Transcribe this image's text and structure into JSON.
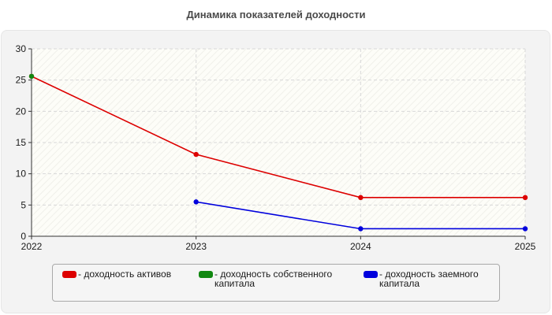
{
  "chart_data": {
    "type": "line",
    "title": "Динамика показателей доходности",
    "x": [
      "2022",
      "2023",
      "2024",
      "2025"
    ],
    "ylim": [
      0,
      30
    ],
    "yticks": [
      "0",
      "5",
      "10",
      "15",
      "20",
      "25",
      "30"
    ],
    "grid": true,
    "legend_position": "bottom",
    "series": [
      {
        "name": "- доходность активов",
        "color": "#dd0000",
        "values": [
          25.6,
          13.1,
          6.2,
          6.2
        ]
      },
      {
        "name": "- доходность собственного капитала",
        "color": "#118811",
        "values": [
          25.6,
          null,
          null,
          null
        ]
      },
      {
        "name": "- доходность заемного капитала",
        "color": "#0000dd",
        "values": [
          null,
          5.5,
          1.2,
          1.2
        ]
      }
    ]
  }
}
